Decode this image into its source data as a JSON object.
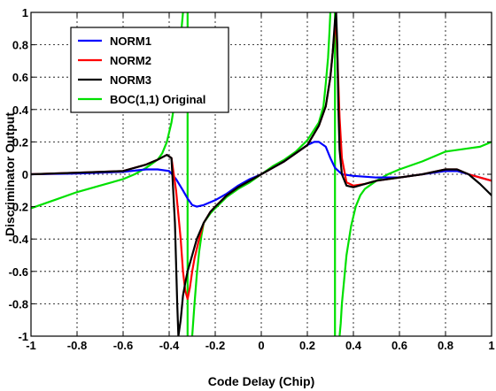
{
  "chart_data": {
    "type": "line",
    "xlabel": "Code Delay (Chip)",
    "ylabel": "Discriminator Output",
    "xlim": [
      -1,
      1
    ],
    "ylim": [
      -1,
      1
    ],
    "xticks": [
      -1,
      -0.8,
      -0.6,
      -0.4,
      -0.2,
      0,
      0.2,
      0.4,
      0.6,
      0.8,
      1
    ],
    "xtick_labels": [
      "-1",
      "-0.8",
      "-0.6",
      "-0.4",
      "-0.2",
      "0",
      "0.2",
      "0.4",
      "0.6",
      "0.8",
      "1"
    ],
    "yticks": [
      -1,
      -0.8,
      -0.6,
      -0.4,
      -0.2,
      0,
      0.2,
      0.4,
      0.6,
      0.8,
      1
    ],
    "ytick_labels": [
      "-1",
      "-0.8",
      "-0.6",
      "-0.4",
      "-0.2",
      "0",
      "0.2",
      "0.4",
      "0.6",
      "0.8",
      "1"
    ],
    "grid": true,
    "grid_style": "dotted",
    "legend_position": "top-left",
    "series": [
      {
        "name": "NORM1",
        "color": "#0000ff",
        "x": [
          -1,
          -0.8,
          -0.6,
          -0.5,
          -0.45,
          -0.4,
          -0.37,
          -0.34,
          -0.32,
          -0.3,
          -0.28,
          -0.25,
          -0.2,
          -0.15,
          -0.1,
          -0.05,
          0,
          0.05,
          0.1,
          0.15,
          0.2,
          0.23,
          0.25,
          0.28,
          0.3,
          0.32,
          0.35,
          0.4,
          0.5,
          0.6,
          0.7,
          0.8,
          0.85,
          0.9,
          0.95,
          1
        ],
        "y": [
          0,
          0.005,
          0.015,
          0.03,
          0.03,
          0.02,
          -0.03,
          -0.1,
          -0.15,
          -0.19,
          -0.2,
          -0.19,
          -0.16,
          -0.12,
          -0.07,
          -0.03,
          0,
          0.04,
          0.08,
          0.13,
          0.18,
          0.2,
          0.2,
          0.17,
          0.1,
          0.04,
          0.0,
          -0.01,
          -0.02,
          -0.02,
          0,
          0.02,
          0.02,
          0.0,
          -0.02,
          -0.04
        ]
      },
      {
        "name": "NORM2",
        "color": "#ff0000",
        "x": [
          -1,
          -0.8,
          -0.6,
          -0.5,
          -0.45,
          -0.41,
          -0.39,
          -0.37,
          -0.35,
          -0.34,
          -0.33,
          -0.32,
          -0.31,
          -0.3,
          -0.29,
          -0.27,
          -0.25,
          -0.22,
          -0.2,
          -0.15,
          -0.1,
          -0.05,
          0,
          0.05,
          0.1,
          0.15,
          0.2,
          0.25,
          0.28,
          0.3,
          0.31,
          0.32,
          0.325,
          0.33,
          0.34,
          0.35,
          0.37,
          0.4,
          0.45,
          0.5,
          0.6,
          0.7,
          0.8,
          0.85,
          0.9,
          0.95,
          1
        ],
        "y": [
          0,
          0.01,
          0.02,
          0.06,
          0.09,
          0.12,
          0.1,
          -0.1,
          -0.4,
          -0.6,
          -0.72,
          -0.77,
          -0.7,
          -0.6,
          -0.52,
          -0.4,
          -0.3,
          -0.23,
          -0.2,
          -0.13,
          -0.08,
          -0.04,
          0,
          0.04,
          0.08,
          0.13,
          0.18,
          0.3,
          0.42,
          0.6,
          0.75,
          0.9,
          0.93,
          0.75,
          0.35,
          0.1,
          -0.05,
          -0.07,
          -0.06,
          -0.04,
          -0.02,
          0.0,
          0.03,
          0.03,
          0.0,
          -0.02,
          -0.04
        ]
      },
      {
        "name": "NORM3",
        "color": "#000000",
        "x": [
          -1,
          -0.8,
          -0.6,
          -0.5,
          -0.45,
          -0.41,
          -0.39,
          -0.375,
          -0.365,
          -0.36,
          -0.35,
          -0.34,
          -0.33,
          -0.32,
          -0.31,
          -0.3,
          -0.28,
          -0.25,
          -0.22,
          -0.2,
          -0.15,
          -0.1,
          -0.05,
          0,
          0.05,
          0.1,
          0.15,
          0.2,
          0.25,
          0.28,
          0.3,
          0.31,
          0.32,
          0.325,
          0.33,
          0.335,
          0.34,
          0.35,
          0.37,
          0.4,
          0.45,
          0.5,
          0.6,
          0.7,
          0.8,
          0.85,
          0.9,
          0.95,
          1
        ],
        "y": [
          0,
          0.01,
          0.02,
          0.06,
          0.09,
          0.12,
          0.1,
          -0.3,
          -0.8,
          -1.0,
          -0.9,
          -0.75,
          -0.67,
          -0.6,
          -0.55,
          -0.5,
          -0.4,
          -0.3,
          -0.23,
          -0.2,
          -0.13,
          -0.08,
          -0.04,
          0,
          0.04,
          0.08,
          0.13,
          0.18,
          0.3,
          0.42,
          0.6,
          0.75,
          0.95,
          1.0,
          0.8,
          0.4,
          0.15,
          0.0,
          -0.07,
          -0.08,
          -0.06,
          -0.04,
          -0.02,
          0.0,
          0.03,
          0.03,
          0.0,
          -0.06,
          -0.13
        ]
      },
      {
        "name": "BOC(1,1) Original",
        "color": "#00e000",
        "segments": [
          {
            "x": [
              -1,
              -0.9,
              -0.8,
              -0.7,
              -0.6,
              -0.55,
              -0.5,
              -0.47,
              -0.45,
              -0.43,
              -0.41,
              -0.39,
              -0.37,
              -0.36,
              -0.35,
              -0.345,
              -0.34
            ],
            "y": [
              -0.21,
              -0.16,
              -0.11,
              -0.07,
              -0.03,
              0.0,
              0.04,
              0.07,
              0.09,
              0.13,
              0.2,
              0.32,
              0.5,
              0.65,
              0.8,
              0.92,
              1.0
            ]
          },
          {
            "x": [
              -0.32,
              -0.32
            ],
            "y": [
              1.0,
              -1.0
            ]
          },
          {
            "x": [
              -0.3,
              -0.295,
              -0.29,
              -0.28,
              -0.27,
              -0.26,
              -0.25,
              -0.22,
              -0.2,
              -0.15,
              -0.1,
              -0.05,
              0,
              0.05,
              0.1,
              0.15,
              0.2,
              0.25,
              0.27,
              0.28,
              0.29,
              0.295,
              0.3
            ],
            "y": [
              -1.0,
              -0.9,
              -0.8,
              -0.62,
              -0.48,
              -0.38,
              -0.3,
              -0.24,
              -0.21,
              -0.14,
              -0.09,
              -0.05,
              0,
              0.05,
              0.09,
              0.14,
              0.21,
              0.32,
              0.42,
              0.56,
              0.72,
              0.85,
              1.0
            ]
          },
          {
            "x": [
              0.32,
              0.32
            ],
            "y": [
              1.0,
              -1.0
            ]
          },
          {
            "x": [
              0.34,
              0.345,
              0.35,
              0.36,
              0.37,
              0.39,
              0.41,
              0.43,
              0.45,
              0.47,
              0.5,
              0.55,
              0.6,
              0.7,
              0.8,
              0.9,
              0.95,
              1
            ],
            "y": [
              -1.0,
              -0.92,
              -0.8,
              -0.65,
              -0.5,
              -0.32,
              -0.2,
              -0.13,
              -0.09,
              -0.07,
              -0.04,
              0.0,
              0.03,
              0.08,
              0.14,
              0.16,
              0.17,
              0.2
            ]
          }
        ]
      }
    ]
  },
  "colors": {
    "background": "#ffffff",
    "grid": "#000000",
    "axes": "#000000"
  }
}
